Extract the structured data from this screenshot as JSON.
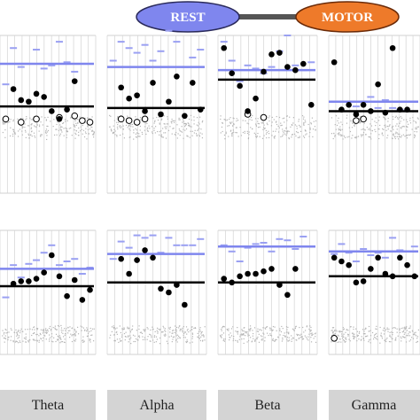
{
  "legend": {
    "items": [
      {
        "label": "REST",
        "color": "#7f86ee"
      },
      {
        "label": "MOTOR",
        "color": "#ee7a2a"
      }
    ],
    "connector_color": "#555555"
  },
  "colors": {
    "grid": "#d2d2d2",
    "tick_bar": "#9aa0f2",
    "threshold_blue": "#7f86ee",
    "threshold_black": "#000000",
    "noise": "#b5b5b5",
    "dot_filled": "#000000",
    "dot_open": "#ffffff",
    "band_box": "#d4d4d4"
  },
  "chart_data": [
    {
      "type": "scatter",
      "panel": "top",
      "band": "Theta",
      "ylim": [
        0,
        10
      ],
      "x": [
        1,
        2,
        3,
        4,
        5,
        6,
        7,
        8,
        9,
        10,
        11,
        12
      ],
      "dots": [
        null,
        6.6,
        5.9,
        5.8,
        6.3,
        6.1,
        5.2,
        4.7,
        5.3,
        7.1,
        null,
        null
      ],
      "open_dots": [
        4.7,
        null,
        4.5,
        null,
        4.7,
        null,
        null,
        4.8,
        null,
        4.9,
        4.6,
        4.5
      ],
      "bars": [
        6.9,
        9.2,
        8.0,
        null,
        9.1,
        7.9,
        8.1,
        9.6,
        8.3,
        7.7,
        null,
        8.2
      ],
      "threshold_blue": 8.2,
      "threshold_black": 5.5
    },
    {
      "type": "scatter",
      "panel": "top",
      "band": "Alpha",
      "ylim": [
        0,
        10
      ],
      "x": [
        1,
        2,
        3,
        4,
        5,
        6,
        7,
        8,
        9,
        10,
        11,
        12
      ],
      "dots": [
        null,
        6.7,
        6.0,
        6.2,
        5.2,
        7.0,
        5.0,
        5.8,
        7.4,
        4.9,
        7.0,
        5.3
      ],
      "open_dots": [
        null,
        4.7,
        4.6,
        4.5,
        4.7,
        null,
        null,
        null,
        null,
        null,
        null,
        null
      ],
      "bars": [
        8.4,
        9.6,
        9.2,
        8.9,
        9.4,
        8.4,
        9.0,
        10.3,
        9.6,
        8.0,
        8.6,
        9.1
      ],
      "threshold_blue": 8.0,
      "threshold_black": 5.4
    },
    {
      "type": "scatter",
      "panel": "top",
      "band": "Beta",
      "ylim": [
        0,
        10
      ],
      "x": [
        1,
        2,
        3,
        4,
        5,
        6,
        7,
        8,
        9,
        10,
        11,
        12
      ],
      "dots": [
        9.2,
        7.6,
        6.8,
        5.2,
        6.0,
        7.7,
        8.8,
        8.9,
        8.0,
        7.8,
        8.2,
        5.6
      ],
      "open_dots": [
        null,
        null,
        null,
        5.0,
        null,
        4.8,
        null,
        null,
        null,
        null,
        null,
        null
      ],
      "bars": [
        9.6,
        8.4,
        7.1,
        8.1,
        7.9,
        7.6,
        8.0,
        9.0,
        10.0,
        8.1,
        7.8,
        8.3
      ],
      "threshold_blue": 7.8,
      "threshold_black": 7.2
    },
    {
      "type": "scatter",
      "panel": "top",
      "band": "Gamma",
      "ylim": [
        0,
        10
      ],
      "x": [
        1,
        2,
        3,
        4,
        5,
        6,
        7,
        8,
        9,
        10,
        11,
        12
      ],
      "dots": [
        8.3,
        5.3,
        5.6,
        5.0,
        5.6,
        5.2,
        6.9,
        5.1,
        9.2,
        5.3,
        5.3,
        null
      ],
      "open_dots": [
        null,
        null,
        null,
        4.6,
        4.7,
        null,
        null,
        null,
        null,
        null,
        null,
        null
      ],
      "bars": [
        null,
        null,
        null,
        5.5,
        null,
        6.1,
        5.4,
        5.9,
        5.4,
        5.3,
        null,
        null
      ],
      "threshold_blue": 5.8,
      "threshold_black": 5.2
    },
    {
      "type": "scatter",
      "panel": "bottom",
      "band": "Theta",
      "ylim": [
        0,
        10
      ],
      "x": [
        1,
        2,
        3,
        4,
        5,
        6,
        7,
        8,
        9,
        10,
        11,
        12
      ],
      "dots": [
        null,
        5.7,
        5.9,
        5.9,
        6.1,
        6.6,
        8.0,
        6.3,
        4.7,
        6.0,
        4.4,
        5.2
      ],
      "open_dots": [
        null,
        null,
        null,
        null,
        null,
        null,
        null,
        null,
        null,
        null,
        null,
        null
      ],
      "bars": [
        4.6,
        7.2,
        6.2,
        7.3,
        7.6,
        8.2,
        8.8,
        7.2,
        7.5,
        7.7,
        6.5,
        7.0
      ],
      "threshold_blue": 6.9,
      "threshold_black": 5.5
    },
    {
      "type": "scatter",
      "panel": "bottom",
      "band": "Alpha",
      "ylim": [
        0,
        10
      ],
      "x": [
        1,
        2,
        3,
        4,
        5,
        6,
        7,
        8,
        9,
        10,
        11,
        12
      ],
      "dots": [
        null,
        7.7,
        6.5,
        7.6,
        8.4,
        7.8,
        5.3,
        5.0,
        5.6,
        4.0,
        null,
        null
      ],
      "open_dots": [
        null,
        null,
        null,
        null,
        null,
        null,
        null,
        null,
        null,
        null,
        null,
        null
      ],
      "bars": [
        7.7,
        9.1,
        8.6,
        9.6,
        9.4,
        9.6,
        8.2,
        9.4,
        8.8,
        8.8,
        8.8,
        9.3
      ],
      "threshold_blue": 8.1,
      "threshold_black": 5.8
    },
    {
      "type": "scatter",
      "panel": "bottom",
      "band": "Beta",
      "ylim": [
        0,
        10
      ],
      "x": [
        1,
        2,
        3,
        4,
        5,
        6,
        7,
        8,
        9,
        10,
        11,
        12
      ],
      "dots": [
        6.1,
        5.8,
        6.3,
        6.5,
        6.5,
        6.7,
        6.9,
        5.6,
        4.8,
        6.9,
        null,
        null
      ],
      "open_dots": [
        null,
        null,
        null,
        null,
        null,
        null,
        null,
        null,
        null,
        null,
        null,
        null
      ],
      "bars": [
        8.8,
        8.3,
        7.5,
        8.6,
        8.9,
        9.0,
        8.3,
        9.3,
        9.2,
        8.5,
        9.5,
        8.7
      ],
      "threshold_blue": 8.7,
      "threshold_black": 5.8
    },
    {
      "type": "scatter",
      "panel": "bottom",
      "band": "Gamma",
      "ylim": [
        0,
        10
      ],
      "x": [
        1,
        2,
        3,
        4,
        5,
        6,
        7,
        8,
        9,
        10,
        11,
        12
      ],
      "dots": [
        7.8,
        7.5,
        7.2,
        5.8,
        5.9,
        6.9,
        7.8,
        6.5,
        6.3,
        7.8,
        7.2,
        6.3
      ],
      "open_dots": [
        1.3,
        null,
        null,
        null,
        null,
        null,
        null,
        null,
        null,
        null,
        null,
        null
      ],
      "bars": [
        8.1,
        8.9,
        8.2,
        7.5,
        8.5,
        8.0,
        8.2,
        7.8,
        9.4,
        8.4,
        8.3,
        8.7
      ],
      "threshold_blue": 8.3,
      "threshold_black": 6.3
    }
  ],
  "bands": [
    {
      "label": "Theta"
    },
    {
      "label": "Alpha"
    },
    {
      "label": "Beta"
    },
    {
      "label": "Gamma"
    }
  ]
}
